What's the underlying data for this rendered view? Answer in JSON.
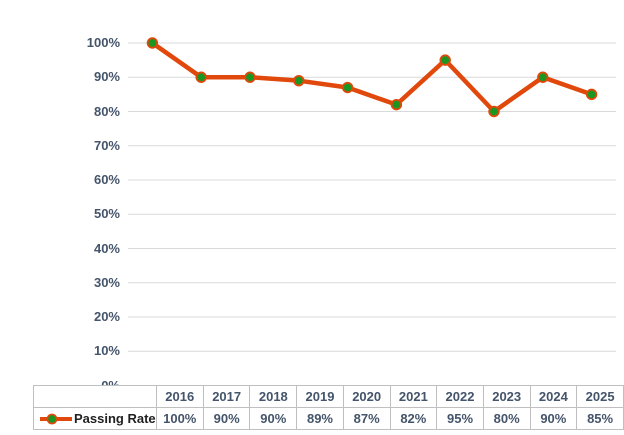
{
  "chart_data": {
    "type": "line",
    "title": "",
    "xlabel": "",
    "ylabel": "",
    "categories": [
      "2016",
      "2017",
      "2018",
      "2019",
      "2020",
      "2021",
      "2022",
      "2023",
      "2024",
      "2025"
    ],
    "series": [
      {
        "name": "Passing Rate",
        "values": [
          100,
          90,
          90,
          89,
          87,
          82,
          95,
          80,
          90,
          85
        ],
        "value_labels": [
          "100%",
          "90%",
          "90%",
          "89%",
          "87%",
          "82%",
          "95%",
          "80%",
          "90%",
          "85%"
        ]
      }
    ],
    "y_axis": {
      "min": 0,
      "max": 100,
      "step": 10,
      "ticks": [
        "100%",
        "90%",
        "80%",
        "70%",
        "60%",
        "50%",
        "40%",
        "30%",
        "20%",
        "10%",
        "0%"
      ]
    },
    "grid": true,
    "legend": {
      "position": "data-table-left",
      "entries": [
        "Passing Rate"
      ]
    },
    "colors": {
      "line": "#E1480B",
      "marker": "#1C9623",
      "gridline": "#D9D9D9",
      "table_border": "#BFBFBF",
      "tick_text": "#44546A",
      "legend_text": "#1F1F1F"
    }
  }
}
